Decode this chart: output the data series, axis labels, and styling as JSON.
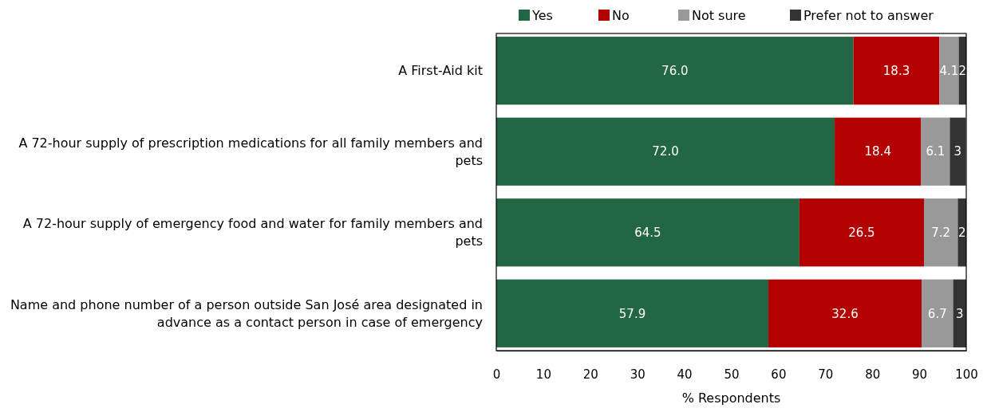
{
  "chart_data": {
    "type": "bar",
    "orientation": "horizontal",
    "stacked": true,
    "xlabel": "% Respondents",
    "categories": [
      "A First-Aid kit",
      "A 72-hour supply of prescription medications for all family members and pets",
      "A 72-hour supply of emergency food and water for family members and pets",
      "Name and phone number of a person outside San José area designated in advance as a contact person in case of emergency"
    ],
    "series": [
      {
        "name": "Yes",
        "color": "#226644",
        "values": [
          76.0,
          72.0,
          64.5,
          57.9
        ],
        "value_labels": [
          "76.0",
          "72.0",
          "64.5",
          "57.9"
        ]
      },
      {
        "name": "No",
        "color": "#b30000",
        "values": [
          18.3,
          18.4,
          26.5,
          32.6
        ],
        "value_labels": [
          "18.3",
          "18.4",
          "26.5",
          "32.6"
        ]
      },
      {
        "name": "Not sure",
        "color": "#999999",
        "values": [
          4.1,
          6.1,
          7.2,
          6.7
        ],
        "value_labels": [
          "4.1",
          "6.1",
          "7.2",
          "6.7"
        ]
      },
      {
        "name": "Prefer not to answer",
        "color": "#333333",
        "values": [
          1.6,
          3.4,
          1.8,
          2.8
        ],
        "value_labels": [
          "2",
          "3",
          "2",
          "3"
        ]
      }
    ],
    "xlim": [
      0,
      100
    ],
    "xticks": [
      0,
      10,
      20,
      30,
      40,
      50,
      60,
      70,
      80,
      90,
      100
    ],
    "grid": false,
    "legend": "top"
  }
}
